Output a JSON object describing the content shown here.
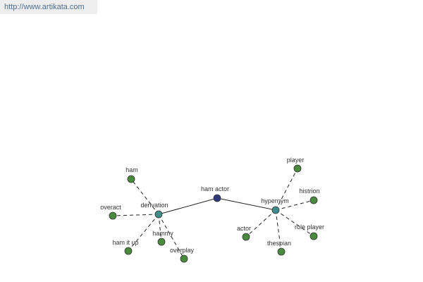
{
  "header": {
    "url": "http://www.artikata.com"
  },
  "nodes": [
    {
      "label": "ham actor"
    },
    {
      "label": "derivation"
    },
    {
      "label": "hypernym"
    },
    {
      "label": "ham"
    },
    {
      "label": "overact"
    },
    {
      "label": "ham it up"
    },
    {
      "label": "hammy"
    },
    {
      "label": "overplay"
    },
    {
      "label": "player"
    },
    {
      "label": "histrion"
    },
    {
      "label": "role player"
    },
    {
      "label": "thespian"
    },
    {
      "label": "actor"
    }
  ]
}
